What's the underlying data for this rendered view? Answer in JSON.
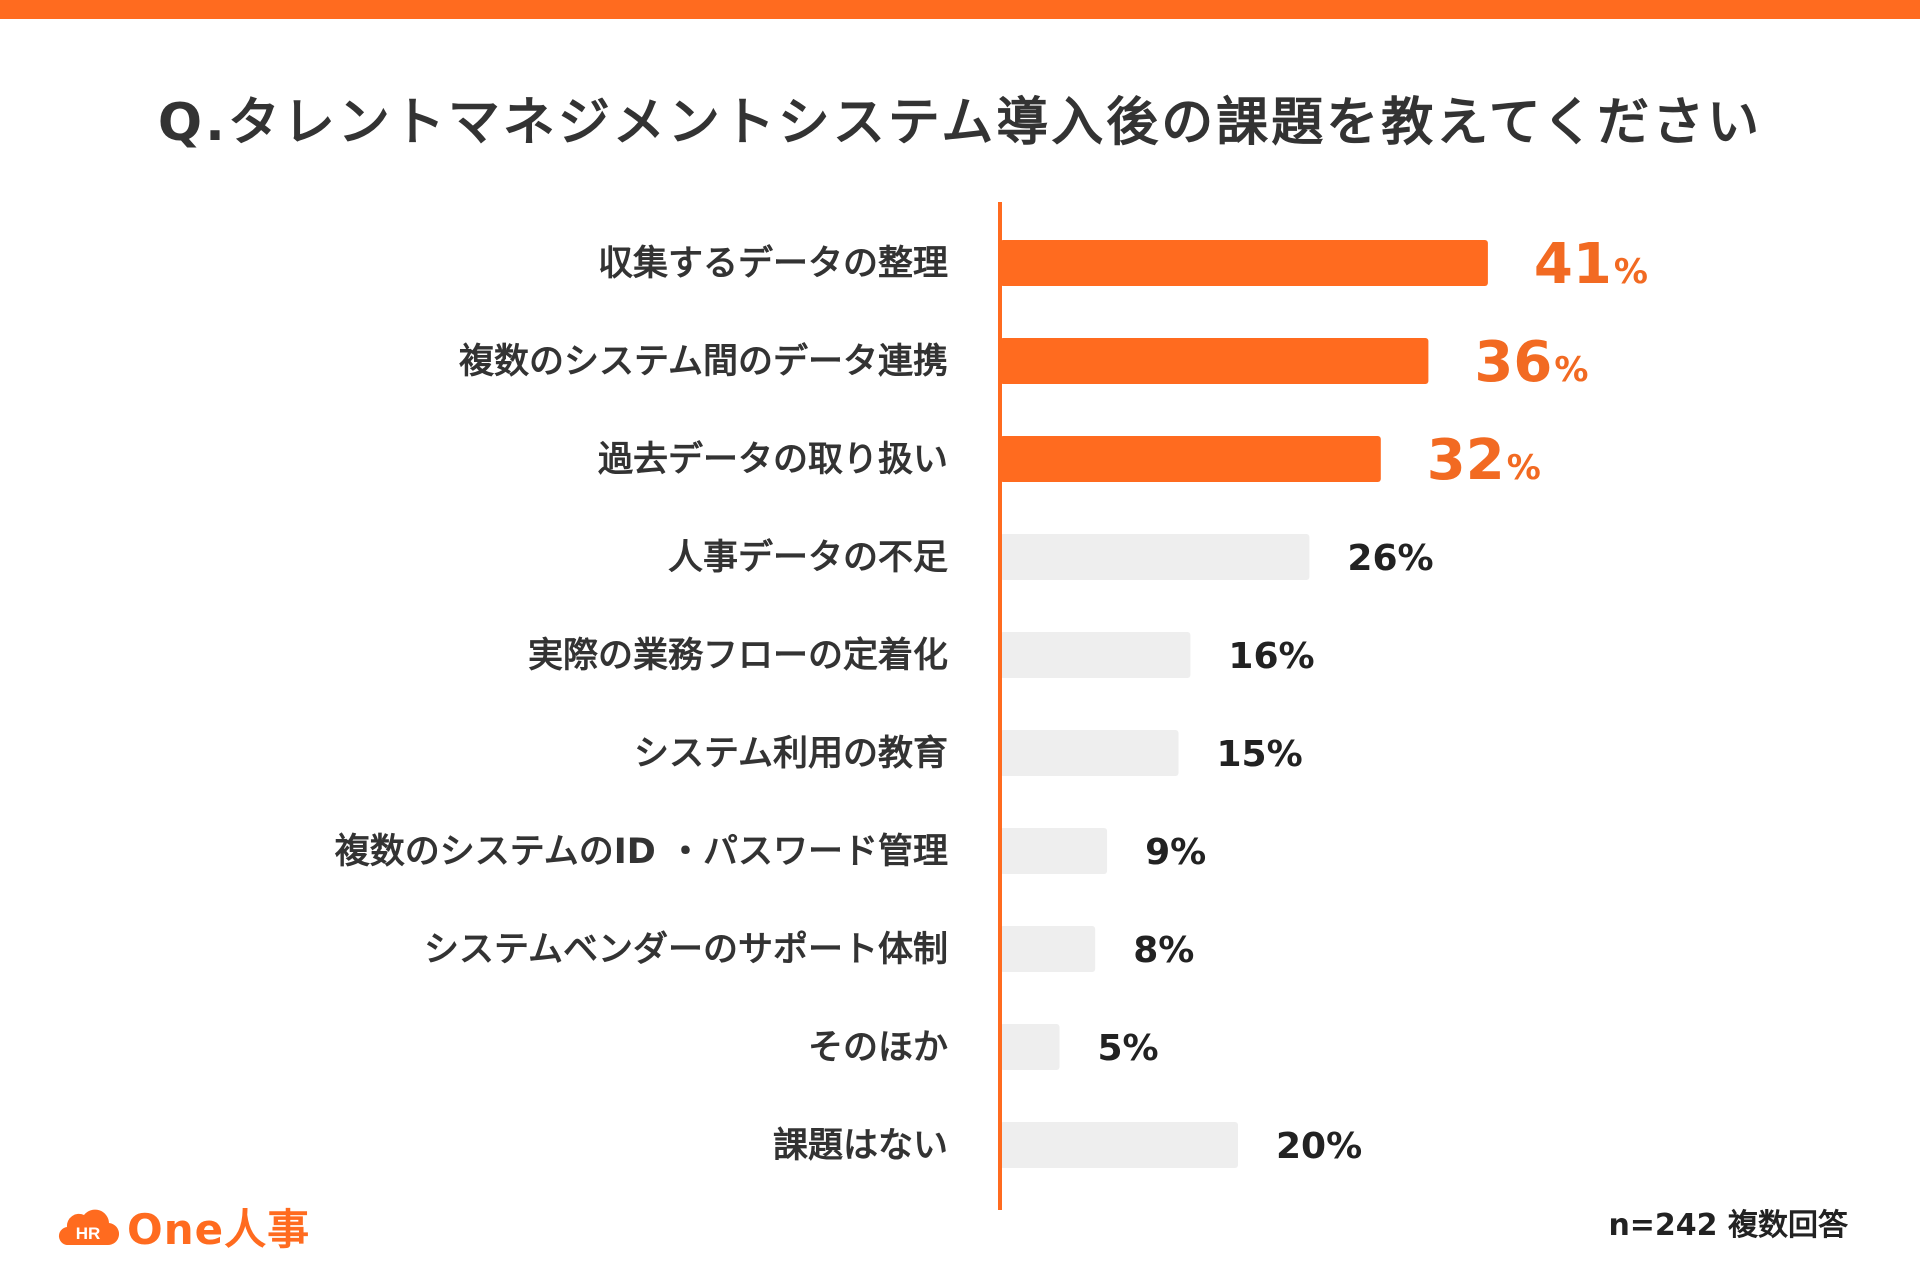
{
  "colors": {
    "accent": "#FF6B1F",
    "accent_text": "#F26A22",
    "bar_gray": "#EEEEEE",
    "axis": "#FF6B1F"
  },
  "title": "Q.タレントマネジメントシステム導入後の課題を教えてください",
  "chart_data": {
    "type": "bar",
    "orientation": "horizontal",
    "title": "Q.タレントマネジメントシステム導入後の課題を教えてください",
    "unit": "%",
    "highlight_count": 3,
    "xlim": [
      0,
      100
    ],
    "categories": [
      "収集するデータの整理",
      "複数のシステム間のデータ連携",
      "過去データの取り扱い",
      "人事データの不足",
      "実際の業務フローの定着化",
      "システム利用の教育",
      "複数のシステムのID ・パスワード管理",
      "システムベンダーのサポート体制",
      "そのほか",
      "課題はない"
    ],
    "values": [
      41,
      36,
      32,
      26,
      16,
      15,
      9,
      8,
      5,
      20
    ]
  },
  "logo": {
    "icon": "hr-cloud-icon",
    "icon_text": "HR",
    "text": "One人事"
  },
  "footnote": "n=242 複数回答"
}
